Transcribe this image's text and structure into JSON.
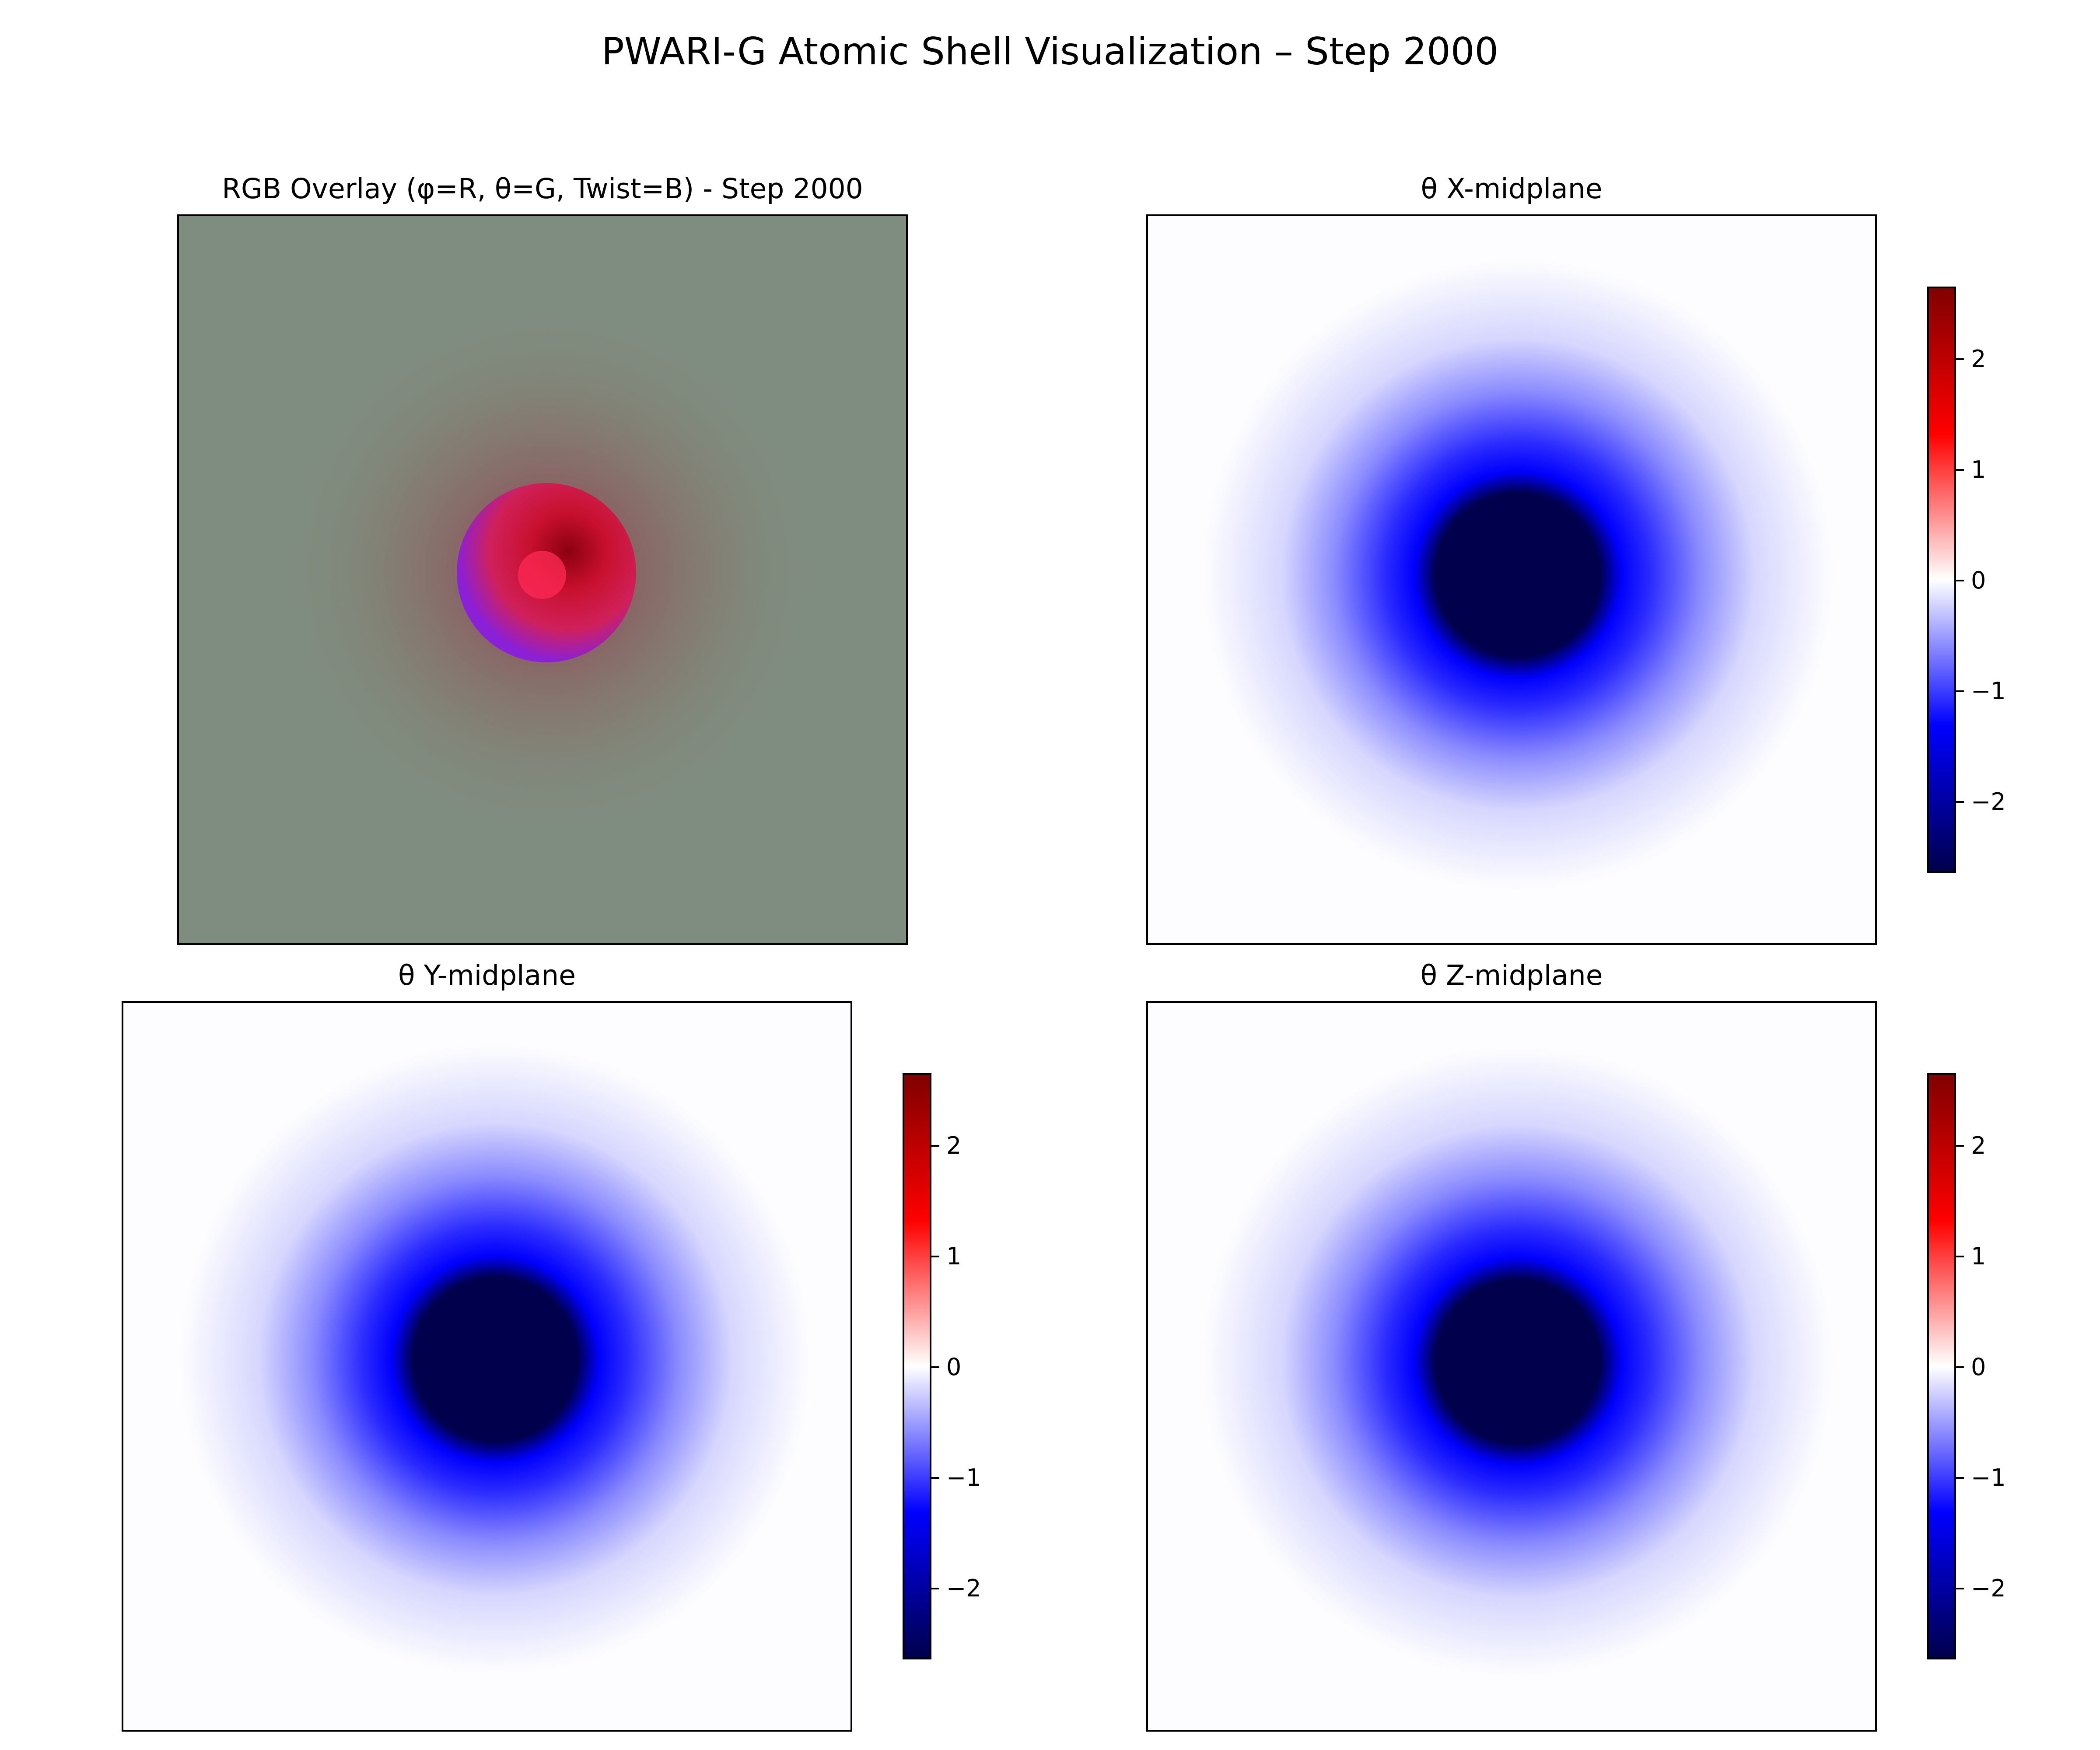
{
  "chart_data": {
    "title": "PWARI-G Atomic Shell Visualization – Step 2000",
    "panels": [
      {
        "id": "rgb-overlay",
        "type": "heatmap",
        "title": "RGB Overlay (φ=R, θ=G, Twist=B) - Step 2000",
        "background_color": "#7f8d80",
        "core_color": "#c8102e",
        "core_shadow_color": "#8a20d8",
        "colorbar": null
      },
      {
        "id": "theta-x",
        "type": "heatmap",
        "title": "θ X-midplane",
        "colormap": "seismic",
        "vmin": -2.6,
        "vmax": 2.6,
        "colorbar_ticks": [
          2,
          1,
          0,
          -1,
          -2
        ],
        "colorbar_tick_labels": [
          "2",
          "1",
          "0",
          "−1",
          "−2"
        ]
      },
      {
        "id": "theta-y",
        "type": "heatmap",
        "title": "θ Y-midplane",
        "colormap": "seismic",
        "vmin": -2.6,
        "vmax": 2.6,
        "colorbar_ticks": [
          2,
          1,
          0,
          -1,
          -2
        ],
        "colorbar_tick_labels": [
          "2",
          "1",
          "0",
          "−1",
          "−2"
        ]
      },
      {
        "id": "theta-z",
        "type": "heatmap",
        "title": "θ Z-midplane",
        "colormap": "seismic",
        "vmin": -2.6,
        "vmax": 2.6,
        "colorbar_ticks": [
          2,
          1,
          0,
          -1,
          -2
        ],
        "colorbar_tick_labels": [
          "2",
          "1",
          "0",
          "−1",
          "−2"
        ]
      }
    ],
    "colors": {
      "deep_negative": "#00004c",
      "negative": "#0000ff",
      "zero": "#ffffff",
      "positive": "#ff0000",
      "deep_positive": "#800000"
    }
  }
}
